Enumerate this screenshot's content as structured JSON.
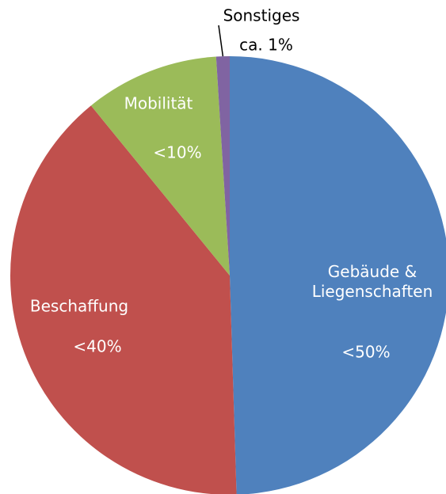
{
  "chart_data": {
    "type": "pie",
    "categories": [
      "Gebäude &\nLiegenschaften",
      "Beschaffung",
      "Mobilität",
      "Sonstiges"
    ],
    "values": [
      50,
      40,
      10,
      1
    ],
    "value_labels": [
      "<50%",
      "<40%",
      "<10%",
      "ca. 1%"
    ],
    "colors": [
      "#4f81bd",
      "#c0504d",
      "#9bbb59",
      "#8064a2"
    ]
  }
}
